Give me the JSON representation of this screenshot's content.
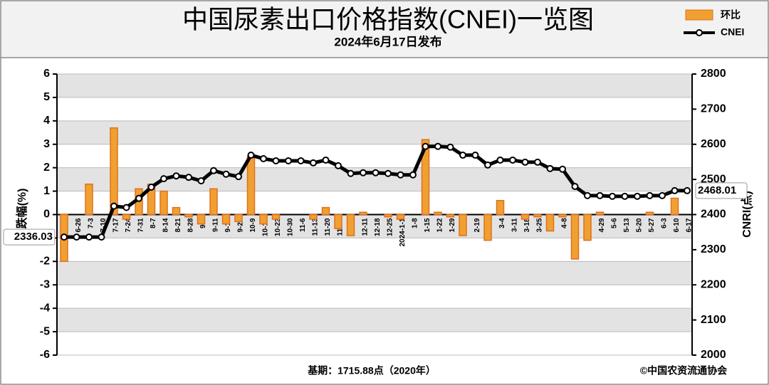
{
  "chart_data": {
    "type": "bar",
    "title": "中国尿素出口价格指数(CNEI)一览图",
    "subtitle": "2024年6月17日发布",
    "ylabel": "涨跌幅(%)",
    "y2label": "CNRI(点)",
    "footer_left": "基期：1715.88点（2020年）",
    "footer_right": "©中国农资流通协会",
    "categories": [
      "6-19",
      "6-26",
      "7-3",
      "7-10",
      "7-17",
      "7-24",
      "7-31",
      "8-7",
      "8-14",
      "8-21",
      "8-28",
      "9-4",
      "9-11",
      "9-18",
      "9-25",
      "10-9",
      "10-16",
      "10-23",
      "10-30",
      "11-6",
      "11-13",
      "11-20",
      "11-27",
      "12-4",
      "12-11",
      "12-18",
      "12-25",
      "2024-1-1",
      "1-8",
      "1-15",
      "1-22",
      "1-29",
      "2-5",
      "2-19",
      "2-26",
      "3-4",
      "3-11",
      "3-18",
      "3-25",
      "4-1",
      "4-8",
      "4-15",
      "4-22",
      "4-29",
      "5-6",
      "5-13",
      "5-20",
      "5-27",
      "6-3",
      "6-10",
      "6-17"
    ],
    "series": [
      {
        "name": "环比",
        "type": "bar",
        "color": "#f0a030",
        "values": [
          -2.0,
          0,
          1.3,
          0,
          3.7,
          -0.2,
          1.1,
          1.3,
          1.0,
          0.3,
          -0.1,
          -0.4,
          1.1,
          -0.4,
          -0.3,
          2.5,
          -0.4,
          -0.2,
          0,
          0,
          -0.2,
          0.3,
          -0.6,
          -0.9,
          0.1,
          0,
          -0.1,
          -0.2,
          0,
          3.2,
          0.1,
          -0.1,
          -0.9,
          0,
          -1.1,
          0.6,
          0,
          -0.2,
          -0.1,
          -0.7,
          -0.1,
          -1.9,
          -1.1,
          0.1,
          0,
          0,
          0,
          0.1,
          0,
          0.7,
          0
        ]
      },
      {
        "name": "CNEI",
        "type": "line",
        "axis": "y2",
        "color": "#000000",
        "values": [
          2336.03,
          2336,
          2336,
          2336,
          2424,
          2420,
          2446,
          2478,
          2502,
          2510,
          2506,
          2496,
          2525,
          2515,
          2508,
          2569,
          2559,
          2553,
          2553,
          2553,
          2547,
          2555,
          2539,
          2517,
          2519,
          2519,
          2517,
          2513,
          2513,
          2594,
          2594,
          2592,
          2569,
          2569,
          2541,
          2555,
          2555,
          2549,
          2549,
          2531,
          2529,
          2480,
          2454,
          2454,
          2452,
          2452,
          2452,
          2454,
          2454,
          2468,
          2468.01
        ]
      }
    ],
    "ylim": [
      -6,
      6
    ],
    "yticks": [
      -6,
      -5,
      -4,
      -3,
      -2,
      -1,
      0,
      1,
      2,
      3,
      4,
      5,
      6
    ],
    "y2lim": [
      2000,
      2800
    ],
    "y2ticks": [
      2000,
      2100,
      2200,
      2300,
      2400,
      2500,
      2600,
      2700,
      2800
    ],
    "grid": true
  }
}
